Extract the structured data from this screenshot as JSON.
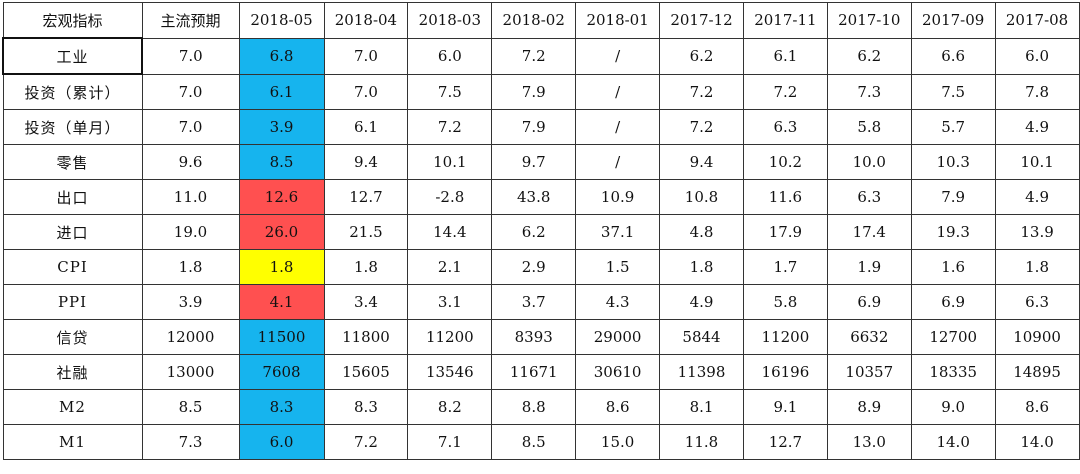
{
  "table": {
    "headers": [
      "宏观指标",
      "主流预期",
      "2018-05",
      "2018-04",
      "2018-03",
      "2018-02",
      "2018-01",
      "2017-12",
      "2017-11",
      "2017-10",
      "2017-09",
      "2017-08"
    ],
    "rows": [
      {
        "indicator": "工业",
        "expected": "7.0",
        "values": [
          "6.8",
          "7.0",
          "6.0",
          "7.2",
          "/",
          "6.2",
          "6.1",
          "6.2",
          "6.6",
          "6.0"
        ],
        "highlight": "#16b4ee"
      },
      {
        "indicator": "投资（累计）",
        "expected": "7.0",
        "values": [
          "6.1",
          "7.0",
          "7.5",
          "7.9",
          "/",
          "7.2",
          "7.2",
          "7.3",
          "7.5",
          "7.8"
        ],
        "highlight": "#16b4ee"
      },
      {
        "indicator": "投资（单月）",
        "expected": "7.0",
        "values": [
          "3.9",
          "6.1",
          "7.2",
          "7.9",
          "/",
          "7.2",
          "6.3",
          "5.8",
          "5.7",
          "4.9"
        ],
        "highlight": "#16b4ee"
      },
      {
        "indicator": "零售",
        "expected": "9.6",
        "values": [
          "8.5",
          "9.4",
          "10.1",
          "9.7",
          "/",
          "9.4",
          "10.2",
          "10.0",
          "10.3",
          "10.1"
        ],
        "highlight": "#16b4ee"
      },
      {
        "indicator": "出口",
        "expected": "11.0",
        "values": [
          "12.6",
          "12.7",
          "-2.8",
          "43.8",
          "10.9",
          "10.8",
          "11.6",
          "6.3",
          "7.9",
          "4.9"
        ],
        "highlight": "#ff5050"
      },
      {
        "indicator": "进口",
        "expected": "19.0",
        "values": [
          "26.0",
          "21.5",
          "14.4",
          "6.2",
          "37.1",
          "4.8",
          "17.9",
          "17.4",
          "19.3",
          "13.9"
        ],
        "highlight": "#ff5050"
      },
      {
        "indicator": "CPI",
        "expected": "1.8",
        "values": [
          "1.8",
          "1.8",
          "2.1",
          "2.9",
          "1.5",
          "1.8",
          "1.7",
          "1.9",
          "1.6",
          "1.8"
        ],
        "highlight": "#ffff00"
      },
      {
        "indicator": "PPI",
        "expected": "3.9",
        "values": [
          "4.1",
          "3.4",
          "3.1",
          "3.7",
          "4.3",
          "4.9",
          "5.8",
          "6.9",
          "6.9",
          "6.3"
        ],
        "highlight": "#ff5050"
      },
      {
        "indicator": "信贷",
        "expected": "12000",
        "values": [
          "11500",
          "11800",
          "11200",
          "8393",
          "29000",
          "5844",
          "11200",
          "6632",
          "12700",
          "10900"
        ],
        "highlight": "#16b4ee"
      },
      {
        "indicator": "社融",
        "expected": "13000",
        "values": [
          "7608",
          "15605",
          "13546",
          "11671",
          "30610",
          "11398",
          "16196",
          "10357",
          "18335",
          "14895"
        ],
        "highlight": "#16b4ee"
      },
      {
        "indicator": "M2",
        "expected": "8.5",
        "values": [
          "8.3",
          "8.3",
          "8.2",
          "8.8",
          "8.6",
          "8.1",
          "9.1",
          "8.9",
          "9.0",
          "8.6"
        ],
        "highlight": "#16b4ee"
      },
      {
        "indicator": "M1",
        "expected": "7.3",
        "values": [
          "6.0",
          "7.2",
          "7.1",
          "8.5",
          "15.0",
          "11.8",
          "12.7",
          "13.0",
          "14.0",
          "14.0"
        ],
        "highlight": "#16b4ee"
      }
    ]
  }
}
